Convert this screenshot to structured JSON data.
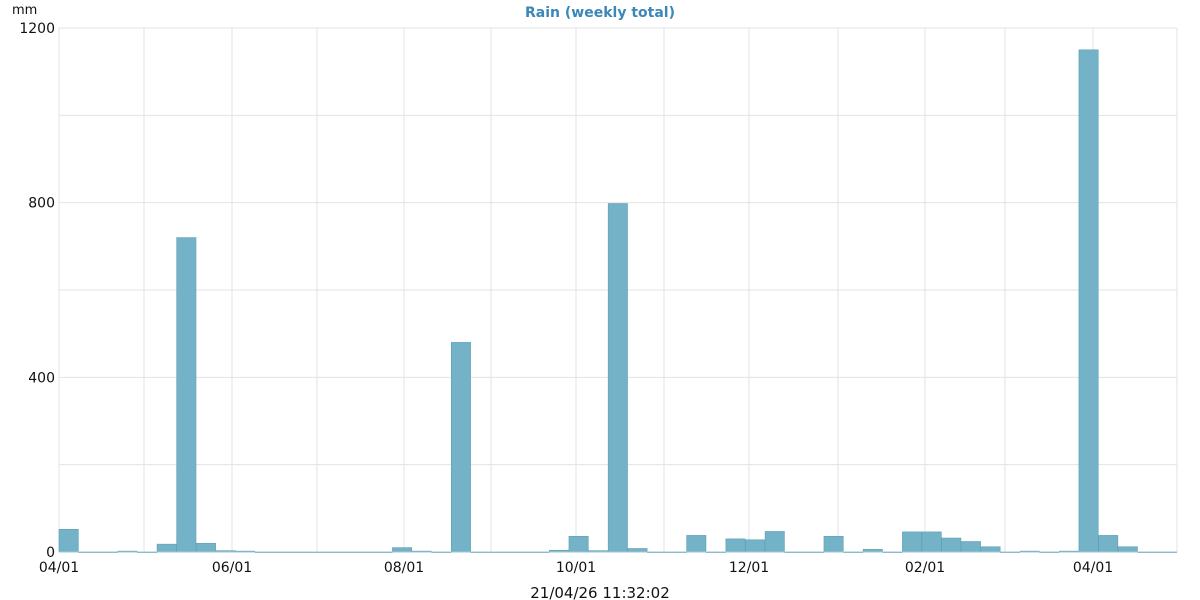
{
  "chart_data": {
    "type": "bar",
    "title": "Rain (weekly total)",
    "ylabel": "mm",
    "xlabel": "",
    "ylim": [
      0,
      1200
    ],
    "y_ticks": [
      0,
      400,
      800,
      1200
    ],
    "x_ticks": [
      "04/01",
      "06/01",
      "08/01",
      "10/01",
      "12/01",
      "02/01",
      "04/01"
    ],
    "grid": true,
    "bar_color": "#74b3c7",
    "series": [
      {
        "values": [
          52,
          0,
          0,
          2,
          0,
          18,
          720,
          20,
          3,
          2,
          0,
          0,
          0,
          0,
          0,
          0,
          0,
          10,
          2,
          0,
          480,
          0,
          0,
          0,
          0,
          4,
          36,
          3,
          798,
          8,
          0,
          0,
          38,
          0,
          30,
          28,
          47,
          0,
          0,
          36,
          0,
          6,
          0,
          46,
          46,
          32,
          24,
          12,
          0,
          2,
          0,
          2,
          1150,
          38,
          12,
          0,
          0
        ]
      }
    ]
  },
  "timestamp": "21/04/26 11:32:02",
  "colors": {
    "title": "#3c87b8",
    "grid": "#e3e3e3",
    "bar": "#74b3c7",
    "bar_stroke": "#5e9fb3"
  }
}
